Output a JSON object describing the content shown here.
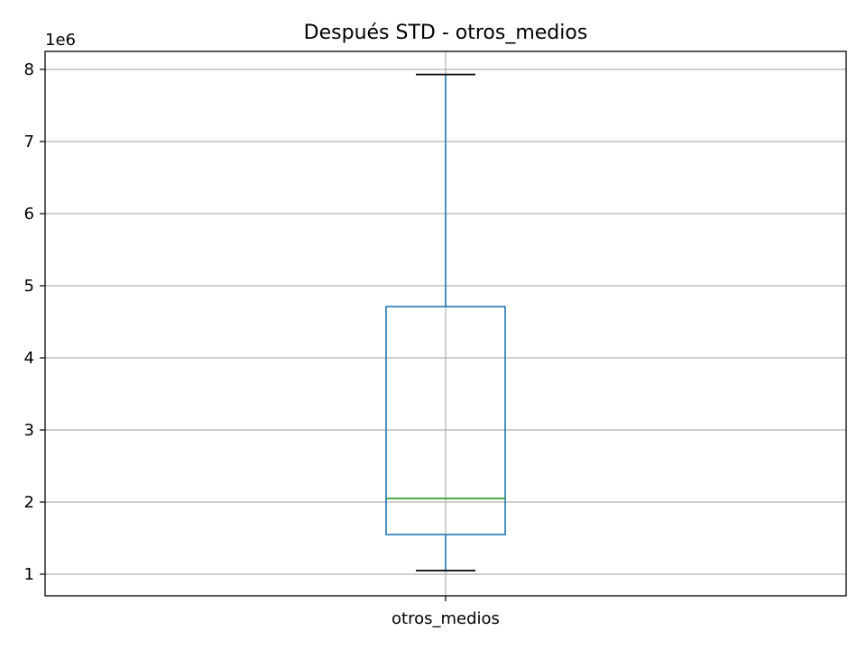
{
  "chart_data": {
    "type": "box",
    "title": "Después STD - otros_medios",
    "categories": [
      "otros_medios"
    ],
    "offset_label": "1e6",
    "y_ticks": [
      "1",
      "2",
      "3",
      "4",
      "5",
      "6",
      "7",
      "8"
    ],
    "ylim": [
      0.7,
      8.25
    ],
    "grid": true,
    "box": {
      "whisker_low": 1.05,
      "q1": 1.55,
      "median": 2.05,
      "q3": 4.71,
      "whisker_high": 7.93
    },
    "colors": {
      "box": "#1f77b4",
      "median": "#2ca02c",
      "caps": "#000000"
    }
  }
}
